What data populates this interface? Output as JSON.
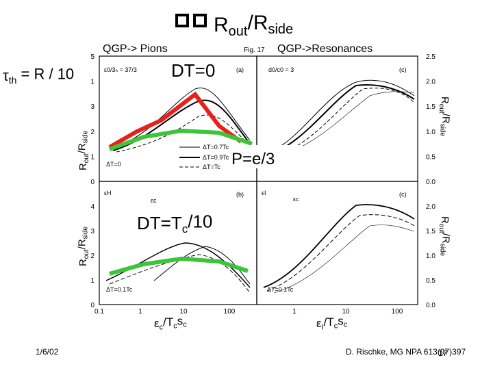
{
  "slide": {
    "title": [
      "R",
      "out",
      "/R",
      "side"
    ],
    "left_heading": "QGP-> Pions",
    "fig_label": "Fig. 17",
    "right_heading": "QGP->Resonances",
    "tau": [
      "τ",
      "th",
      " = R / 10"
    ],
    "dT0": "DT=0",
    "eos": "P=e/3",
    "dTc": [
      "DT=T",
      "c",
      "/10"
    ],
    "date": "1/6/02",
    "citation": "D. Rischke, MG NPA 613(97)397",
    "page": "17",
    "figure": {
      "y_label_left": [
        "R",
        "out",
        "/R",
        "side"
      ],
      "y_label_right": [
        "R",
        "out",
        "/R",
        "side"
      ],
      "left_yticks_top": [
        "0",
        "1",
        "2",
        "3",
        "1",
        "5"
      ],
      "left_yticks_bottom": [
        "0",
        "1",
        "2",
        "3",
        "4"
      ],
      "right_yticks_top": [
        "0.0",
        "0.5",
        "1.0",
        "1.5",
        "2.0",
        "2.5"
      ],
      "right_yticks_bottom": [
        "0.0",
        "0.5",
        "1.0",
        "1.5",
        "2.0"
      ],
      "left_xticks": [
        "0.1",
        "1",
        "10",
        "100"
      ],
      "right_xticks": [
        "1",
        "10",
        "100"
      ],
      "x_label_left": [
        "ε",
        "c",
        "/T",
        "c",
        "s",
        "c"
      ],
      "x_label_right": [
        "ε",
        "I",
        "/T",
        "c",
        "s",
        "c"
      ],
      "panel_a": "(a)",
      "panel_b": "(b)",
      "panel_c": "(c)",
      "panel_d": "(c)",
      "note_a": "ε0/3ₕ = 37/3",
      "note_c": "d0/c0 = 3",
      "note_dT0": "ΔT=0",
      "note_b": "ΔT=0.1Tc",
      "note_d": "ΔT=0.1Tc",
      "legend": [
        "ΔT=0.7Tc",
        "ΔT=0.9Tc",
        "ΔT=Tc"
      ],
      "eH": "εH",
      "ec_left": "εc",
      "eI": "εI",
      "ec_right": "εc"
    }
  }
}
